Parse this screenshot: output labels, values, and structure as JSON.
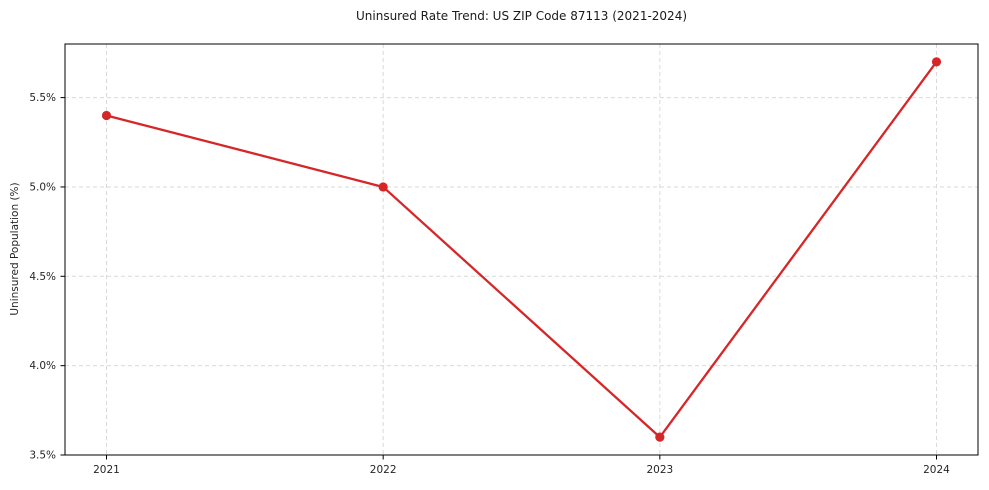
{
  "chart_data": {
    "type": "line",
    "title": "Uninsured Rate Trend: US ZIP Code 87113 (2021-2024)",
    "xlabel": "",
    "ylabel": "Uninsured Population (%)",
    "categories": [
      "2021",
      "2022",
      "2023",
      "2024"
    ],
    "values": [
      5.4,
      5.0,
      3.6,
      5.7
    ],
    "yticks": [
      3.5,
      4.0,
      4.5,
      5.0,
      5.5
    ],
    "ytick_labels": [
      "3.5%",
      "4.0%",
      "4.5%",
      "5.0%",
      "5.5%"
    ],
    "ylim": [
      3.5,
      5.8
    ],
    "xlim": [
      -0.15,
      3.15
    ],
    "grid": true,
    "grid_style": "dashed",
    "legend_position": "none",
    "marker": "circle",
    "colors": {
      "line": "#d62728",
      "marker": "#d62728",
      "grid": "#d9d9d9",
      "axis": "#000000",
      "tick": "#000000",
      "background": "#ffffff"
    }
  }
}
